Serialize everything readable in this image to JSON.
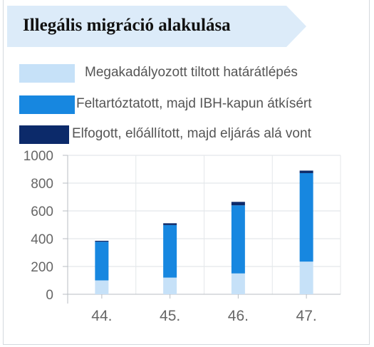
{
  "title": "Illegális migráció alakulása",
  "colors": {
    "banner": "#dcebf9",
    "blocked": "#c6e1f8",
    "escorted": "#1787e0",
    "caught": "#0c2a6a"
  },
  "chart_data": {
    "type": "bar",
    "stacked": true,
    "categories": [
      "44.",
      "45.",
      "46.",
      "47."
    ],
    "series": [
      {
        "name": "Megakadályozott tiltott határátlépés",
        "values": [
          100,
          120,
          150,
          235
        ]
      },
      {
        "name": "Feltartóztatott, majd IBH-kapun átkísért",
        "values": [
          278,
          378,
          490,
          637
        ]
      },
      {
        "name": "Elfogott, előállított, majd eljárás alá vont",
        "values": [
          7,
          13,
          25,
          18
        ]
      }
    ],
    "ylim": [
      0,
      1000
    ],
    "yticks": [
      "0",
      "200",
      "400",
      "600",
      "800",
      "1000"
    ],
    "grid": true,
    "legend_position": "top"
  }
}
